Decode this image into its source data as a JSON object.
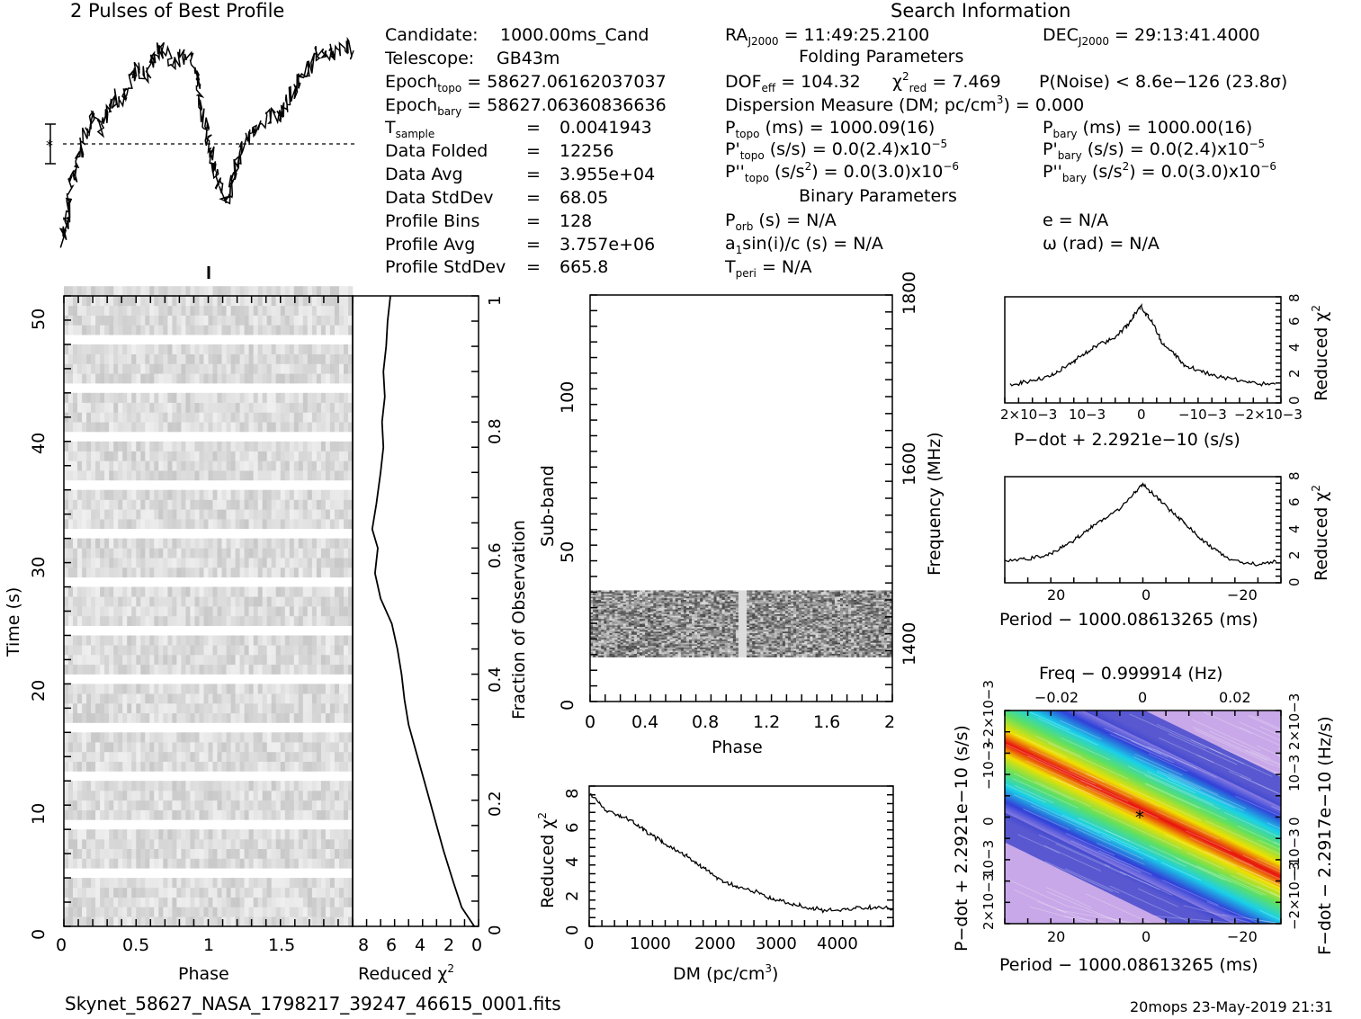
{
  "header": {
    "profile_title": "2 Pulses of Best Profile",
    "search_title": "Search Information",
    "folding_title": "Folding Parameters",
    "binary_title": "Binary Parameters",
    "filename": "Skynet_58627_NASA_1798217_39247_46615_0001.fits",
    "stamp": "20mops 23-May-2019 21:31"
  },
  "info_left": [
    {
      "label": "Candidate:",
      "value": "1000.00ms_Cand"
    },
    {
      "label": "Telescope:",
      "value": "GB43m"
    },
    {
      "label": "Epoch",
      "sub": "topo",
      "value": "= 58627.06162037037"
    },
    {
      "label": "Epoch",
      "sub": "bary",
      "value": "= 58627.06360836636"
    },
    {
      "label": "T",
      "sub": "sample",
      "value": "0.0041943"
    },
    {
      "label": "Data Folded",
      "value": "12256"
    },
    {
      "label": "Data Avg",
      "value": "3.955e+04"
    },
    {
      "label": "Data StdDev",
      "value": "68.05"
    },
    {
      "label": "Profile Bins",
      "value": "128"
    },
    {
      "label": "Profile Avg",
      "value": "3.757e+06"
    },
    {
      "label": "Profile StdDev",
      "value": "665.8"
    }
  ],
  "info_right": {
    "ra_label": "RA",
    "ra_sub": "J2000",
    "ra_value": "= 11:49:25.2100",
    "dec_label": "DEC",
    "dec_sub": "J2000",
    "dec_value": "= 29:13:41.4000",
    "dof_label": "DOF",
    "dof_sub": "eff",
    "dof_value": "= 104.32",
    "chi_sub": "red",
    "chi_value": "= 7.469",
    "pnoise": "P(Noise) < 8.6e−126   (23.8σ)",
    "dm_line": "Dispersion Measure (DM; pc/cm",
    "dm_value": ") = 0.000",
    "ptopo_label": "P",
    "ptopo_sub": "topo",
    "ptopo_value": "(ms) =  1000.09(16)",
    "pbary_label": "P",
    "pbary_sub": "bary",
    "pbary_value": "(ms) =  1000.00(16)",
    "pdtopo_value": "(s/s) = 0.0(2.4)x10",
    "pdtopo_exp": "−5",
    "pdbary_value": "(s/s) = 0.0(2.4)x10",
    "pdbary_exp": "−5",
    "pddtopo_value": "= 0.0(3.0)x10",
    "pddtopo_exp": "−6",
    "pddbary_value": "= 0.0(3.0)x10",
    "pddbary_exp": "−6",
    "porb": "(s) = N/A",
    "ecc": "e = N/A",
    "a1sin": "sin(i)/c (s) = N/A",
    "omega": "ω (rad) = N/A",
    "tperi": "= N/A"
  },
  "chart_data": [
    {
      "type": "line",
      "id": "pulse_profile",
      "title": "2 Pulses of Best Profile",
      "x_range": [
        0,
        2
      ],
      "notes": "two repeated pulses; mean level marked by dashed line with error bar",
      "values_sampled": [
        0.05,
        0.3,
        0.42,
        0.55,
        0.63,
        0.58,
        0.66,
        0.72,
        0.7,
        0.78,
        0.85,
        0.82,
        0.9,
        0.95,
        0.92,
        0.88,
        0.93,
        0.9,
        0.8,
        0.62,
        0.45,
        0.3,
        0.25,
        0.38,
        0.48,
        0.52,
        0.58,
        0.6,
        0.64,
        0.62,
        0.7,
        0.75,
        0.82,
        0.86,
        0.92,
        0.9,
        0.95,
        0.93,
        0.96,
        0.94
      ]
    },
    {
      "type": "heatmap",
      "id": "time_phase",
      "xlabel": "Phase",
      "ylabel": "Time (s)",
      "x_ticks": [
        "0",
        "0.5",
        "1",
        "1.5"
      ],
      "y_ticks": [
        "0",
        "10",
        "20",
        "30",
        "40",
        "50"
      ],
      "x_range": [
        0,
        2
      ],
      "y_range": [
        0,
        52
      ]
    },
    {
      "type": "line",
      "id": "chi_vs_time",
      "xlabel": "Reduced χ",
      "ylabel": "Fraction of Observation",
      "x_ticks": [
        "8",
        "6",
        "4",
        "2",
        "0"
      ],
      "y_ticks": [
        "0",
        "0.2",
        "0.4",
        "0.6",
        "0.8",
        "1"
      ],
      "x_range": [
        9,
        0
      ],
      "points": [
        [
          0.3,
          0.0
        ],
        [
          1.2,
          0.03
        ],
        [
          1.8,
          0.07
        ],
        [
          2.5,
          0.12
        ],
        [
          3.0,
          0.16
        ],
        [
          3.5,
          0.2
        ],
        [
          4.0,
          0.24
        ],
        [
          4.5,
          0.28
        ],
        [
          5.0,
          0.32
        ],
        [
          5.3,
          0.36
        ],
        [
          5.5,
          0.4
        ],
        [
          5.8,
          0.44
        ],
        [
          6.2,
          0.48
        ],
        [
          7.0,
          0.52
        ],
        [
          7.4,
          0.56
        ],
        [
          7.2,
          0.6
        ],
        [
          7.6,
          0.63
        ],
        [
          7.3,
          0.67
        ],
        [
          7.0,
          0.72
        ],
        [
          6.8,
          0.76
        ],
        [
          6.9,
          0.8
        ],
        [
          6.7,
          0.84
        ],
        [
          6.8,
          0.88
        ],
        [
          6.6,
          0.92
        ],
        [
          6.5,
          0.96
        ],
        [
          6.3,
          1.0
        ]
      ]
    },
    {
      "type": "heatmap",
      "id": "subband_phase",
      "xlabel": "Phase",
      "ylabel": "Sub-band",
      "y2label": "Frequency (MHz)",
      "x_ticks": [
        "0",
        "0.4",
        "0.8",
        "1.2",
        "1.6",
        "2"
      ],
      "y_ticks": [
        "0",
        "50",
        "100"
      ],
      "y2_ticks": [
        "1400",
        "1600",
        "1800"
      ],
      "x_range": [
        0,
        2
      ],
      "y_range": [
        0,
        128
      ],
      "filled_band": [
        14,
        35
      ]
    },
    {
      "type": "line",
      "id": "chi_vs_dm",
      "xlabel": "DM (pc/cm",
      "ylabel": "Reduced χ",
      "x_ticks": [
        "0",
        "1000",
        "2000",
        "3000",
        "4000"
      ],
      "y_ticks": [
        "0",
        "2",
        "4",
        "6",
        "8"
      ],
      "x_range": [
        0,
        4900
      ],
      "y_range": [
        0,
        8
      ],
      "points": [
        [
          0,
          7.5
        ],
        [
          300,
          6.6
        ],
        [
          700,
          6.0
        ],
        [
          1000,
          5.2
        ],
        [
          1400,
          4.4
        ],
        [
          1800,
          3.4
        ],
        [
          2200,
          2.5
        ],
        [
          2600,
          2.1
        ],
        [
          3000,
          1.5
        ],
        [
          3400,
          1.2
        ],
        [
          3800,
          0.9
        ],
        [
          4200,
          1.0
        ],
        [
          4600,
          1.1
        ],
        [
          4900,
          1.0
        ]
      ]
    },
    {
      "type": "line",
      "id": "chi_vs_pdot",
      "xlabel": "P−dot + 2.2921e−10 (s/s)",
      "ylabel": "Reduced χ",
      "x_ticks": [
        "2×10−3",
        "10−3",
        "0",
        "−10−3",
        "−2×10−3"
      ],
      "y_ticks": [
        "0",
        "2",
        "4",
        "6",
        "8"
      ],
      "y_range": [
        0,
        8
      ],
      "points": [
        [
          -2.3,
          1.4
        ],
        [
          -2.0,
          1.6
        ],
        [
          -1.6,
          2.0
        ],
        [
          -1.2,
          3.1
        ],
        [
          -0.8,
          4.2
        ],
        [
          -0.4,
          5.1
        ],
        [
          -0.2,
          6.0
        ],
        [
          0,
          7.3
        ],
        [
          0.2,
          6.2
        ],
        [
          0.4,
          4.5
        ],
        [
          0.8,
          2.8
        ],
        [
          1.2,
          2.2
        ],
        [
          1.6,
          1.8
        ],
        [
          2.0,
          1.5
        ],
        [
          2.4,
          1.4
        ]
      ]
    },
    {
      "type": "line",
      "id": "chi_vs_period",
      "xlabel": "Period − 1000.08613265 (ms)",
      "ylabel": "Reduced χ",
      "x_ticks": [
        "20",
        "0",
        "−20"
      ],
      "y_ticks": [
        "0",
        "2",
        "4",
        "6",
        "8"
      ],
      "y_range": [
        0,
        8
      ],
      "points": [
        [
          30,
          1.6
        ],
        [
          25,
          1.8
        ],
        [
          20,
          2.2
        ],
        [
          15,
          3.2
        ],
        [
          10,
          4.5
        ],
        [
          5,
          5.6
        ],
        [
          0,
          7.4
        ],
        [
          -5,
          5.8
        ],
        [
          -10,
          4.2
        ],
        [
          -15,
          2.6
        ],
        [
          -20,
          1.6
        ],
        [
          -25,
          1.4
        ],
        [
          -29,
          1.6
        ]
      ]
    },
    {
      "type": "heatmap",
      "id": "period_pdot",
      "title": "Freq − 0.999914 (Hz)",
      "xlabel": "Period − 1000.08613265 (ms)",
      "ylabel": "P−dot + 2.2921e−10 (s/s)",
      "y2label": "F−dot − 2.2917e−10 (Hz/s)",
      "x_ticks": [
        "20",
        "0",
        "−20"
      ],
      "x2_ticks": [
        "−0.02",
        "0",
        "0.02"
      ],
      "y_ticks": [
        "2×10−3",
        "10−3",
        "0",
        "−10−3",
        "−2×10−3"
      ],
      "y2_ticks": [
        "−2×10−3",
        "−10−3",
        "0",
        "10−3",
        "2×10−3"
      ],
      "best": [
        0,
        0
      ]
    }
  ]
}
